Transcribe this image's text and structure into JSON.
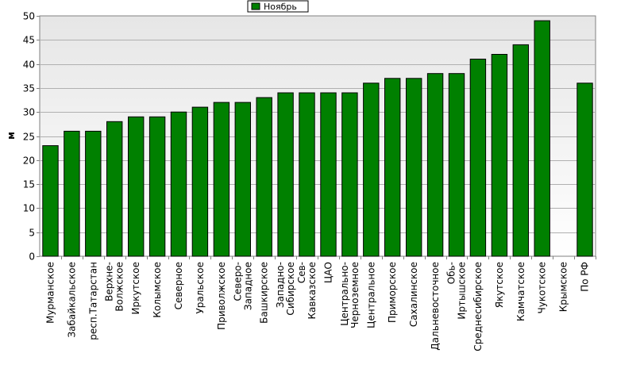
{
  "chart_data": {
    "type": "bar",
    "ylabel": "м",
    "ylim": [
      0,
      50
    ],
    "ytick_step": 5,
    "grid": true,
    "legend_position": "top-center",
    "series": [
      {
        "name": "Ноябрь",
        "color": "#008000",
        "values": [
          23,
          26,
          26,
          28,
          29,
          29,
          30,
          31,
          32,
          32,
          33,
          34,
          34,
          34,
          34,
          36,
          37,
          37,
          38,
          38,
          41,
          42,
          44,
          49,
          null,
          36
        ]
      }
    ],
    "categories": [
      "Мурманское",
      "Забайкальское",
      "респ.Татарстан",
      "Верхне-\nВолжское",
      "Иркутское",
      "Колымское",
      "Северное",
      "Уральское",
      "Приволжское",
      "Северо-\nЗападное",
      "Башкирское",
      "Западно-\nСибирское",
      "Сев-\nКавказское",
      "ЦАО",
      "Центрально-\nЧерноземное",
      "Центральное",
      "Приморское",
      "Сахалинское",
      "Дальневосточное",
      "Обь-\nИртышское",
      "Среднесибирское",
      "Якутское",
      "Камчатское",
      "Чукотское",
      "Крымское",
      "По РФ"
    ]
  }
}
